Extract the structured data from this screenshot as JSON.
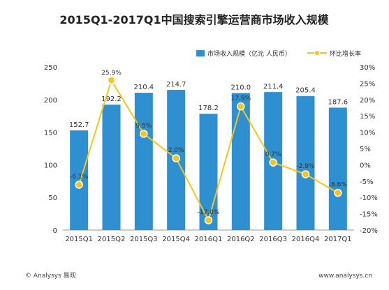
{
  "chart_data": {
    "type": "bar",
    "title": "2015Q1-2017Q1中国搜索引擎运营商市场收入规模",
    "categories": [
      "2015Q1",
      "2015Q2",
      "2015Q3",
      "2015Q4",
      "2016Q1",
      "2016Q2",
      "2016Q3",
      "2016Q4",
      "2017Q1"
    ],
    "series": [
      {
        "name": "市场收入规模（亿元 人民币）",
        "type": "bar",
        "axis": "left",
        "values": [
          152.7,
          192.2,
          210.4,
          214.7,
          178.2,
          210.0,
          211.4,
          205.4,
          187.6
        ],
        "labels": [
          "152.7",
          "192.2",
          "210.4",
          "214.7",
          "178.2",
          "210.0",
          "211.4",
          "205.4",
          "187.6"
        ]
      },
      {
        "name": "环比增长率",
        "type": "line",
        "axis": "right",
        "values": [
          -6.1,
          25.9,
          9.5,
          2.0,
          -17.0,
          17.9,
          0.7,
          -2.9,
          -8.6
        ],
        "labels": [
          "-6.1%",
          "25.9%",
          "9.5%",
          "2.0%",
          "-17.0%",
          "17.9%",
          "0.7%",
          "-2.9%",
          "-8.6%"
        ]
      }
    ],
    "ylim_left": [
      0,
      250
    ],
    "left_ticks": [
      "0",
      "50",
      "100",
      "150",
      "200",
      "250"
    ],
    "ylim_right": [
      -20,
      30
    ],
    "right_ticks": [
      "-20%",
      "-15%",
      "-10%",
      "-5%",
      "0%",
      "5%",
      "10%",
      "15%",
      "20%",
      "25%",
      "30%"
    ],
    "legend_position": "top",
    "grid": false,
    "colors": {
      "bar": "#2e8fd1",
      "line": "#f5c518",
      "marker": "#f5c518"
    }
  },
  "footer": {
    "source": "© Analysys 易观",
    "url": "www.analysys.cn"
  }
}
